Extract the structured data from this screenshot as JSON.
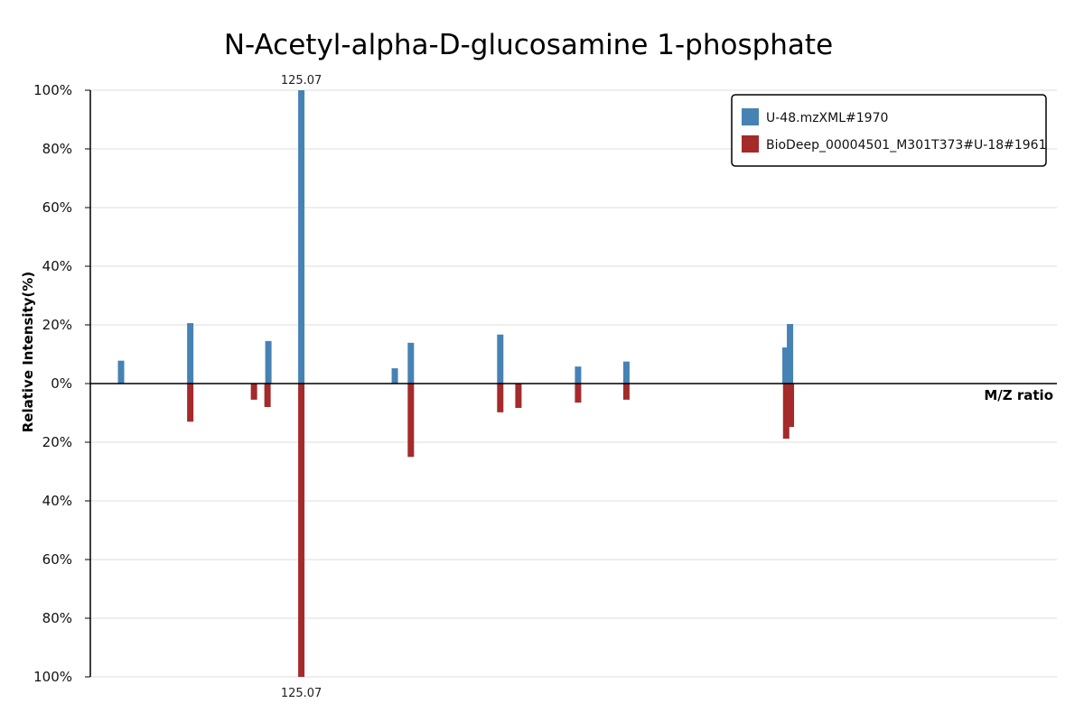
{
  "chart_data": {
    "type": "bar",
    "title": "N-Acetyl-alpha-D-glucosamine 1-phosphate",
    "xlabel": "M/Z ratio",
    "ylabel": "Relative Intensity(%)",
    "ylim": [
      -100,
      100
    ],
    "xlim": [
      0,
      1
    ],
    "y_ticks": [
      "100%",
      "80%",
      "60%",
      "40%",
      "20%",
      "0%",
      "20%",
      "40%",
      "60%",
      "80%",
      "100%"
    ],
    "grid": true,
    "legend_position": "top-right",
    "series": [
      {
        "name": "U-48.mzXML#1970",
        "color": "#4682b4",
        "direction": "up",
        "peaks": [
          {
            "x": 0.0318,
            "y": 7.8
          },
          {
            "x": 0.1034,
            "y": 20.6
          },
          {
            "x": 0.1842,
            "y": 14.5
          },
          {
            "x": 0.2183,
            "y": 100,
            "label": "125.07"
          },
          {
            "x": 0.315,
            "y": 5.2
          },
          {
            "x": 0.3316,
            "y": 13.9
          },
          {
            "x": 0.4241,
            "y": 16.7
          },
          {
            "x": 0.5046,
            "y": 5.8
          },
          {
            "x": 0.5546,
            "y": 7.5
          },
          {
            "x": 0.7192,
            "y": 12.3
          },
          {
            "x": 0.7239,
            "y": 20.3
          }
        ]
      },
      {
        "name": "BioDeep_00004501_M301T373#U-18#1961",
        "color": "#a52a2a",
        "direction": "down",
        "peaks": [
          {
            "x": 0.1034,
            "y": 13.0
          },
          {
            "x": 0.1693,
            "y": 5.5
          },
          {
            "x": 0.1833,
            "y": 8.0
          },
          {
            "x": 0.2183,
            "y": 100,
            "label": "125.07"
          },
          {
            "x": 0.3316,
            "y": 25.0
          },
          {
            "x": 0.4241,
            "y": 9.8
          },
          {
            "x": 0.4429,
            "y": 8.3
          },
          {
            "x": 0.5046,
            "y": 6.5
          },
          {
            "x": 0.5546,
            "y": 5.5
          },
          {
            "x": 0.7199,
            "y": 18.8
          },
          {
            "x": 0.7248,
            "y": 14.8
          }
        ]
      }
    ]
  }
}
